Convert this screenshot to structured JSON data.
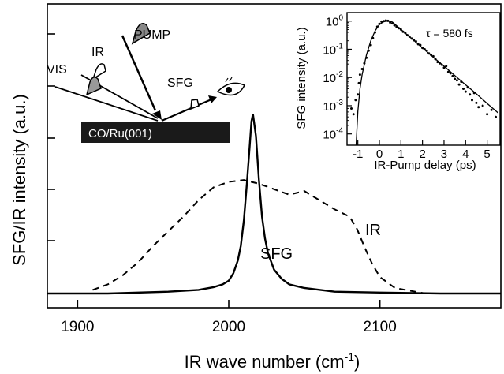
{
  "chart_data": [
    {
      "type": "line",
      "xlabel": "IR wave number (cm",
      "xlabel_sup": "-1",
      "xlabel_end": ")",
      "ylabel": "SFG/IR intensity (a.u.)",
      "xlim": [
        1880,
        2180
      ],
      "ylim": [
        0,
        1
      ],
      "x_ticks": [
        1900,
        2000,
        2100
      ],
      "x_tick_labels": [
        "1900",
        "2000",
        "2100"
      ],
      "grid": false,
      "series": [
        {
          "name": "SFG",
          "style": "solid",
          "x": [
            1880,
            1920,
            1960,
            1980,
            1990,
            1996,
            2000,
            2003,
            2006,
            2008,
            2010,
            2012,
            2014,
            2015,
            2016,
            2018,
            2020,
            2022,
            2024,
            2026,
            2030,
            2035,
            2040,
            2050,
            2070,
            2100,
            2140,
            2180
          ],
          "y": [
            0.0,
            0.0,
            0.01,
            0.02,
            0.035,
            0.05,
            0.07,
            0.11,
            0.18,
            0.26,
            0.4,
            0.6,
            0.82,
            0.94,
            0.98,
            0.86,
            0.62,
            0.42,
            0.3,
            0.22,
            0.13,
            0.08,
            0.05,
            0.03,
            0.01,
            0.005,
            0.0,
            0.0
          ]
        },
        {
          "name": "IR",
          "style": "dashed",
          "x": [
            1910,
            1920,
            1930,
            1940,
            1950,
            1960,
            1970,
            1980,
            1990,
            2000,
            2010,
            2020,
            2030,
            2040,
            2050,
            2060,
            2070,
            2080,
            2085,
            2090,
            2095,
            2100,
            2110,
            2130,
            2150
          ],
          "y": [
            0.02,
            0.05,
            0.1,
            0.17,
            0.26,
            0.34,
            0.42,
            0.51,
            0.58,
            0.61,
            0.62,
            0.6,
            0.57,
            0.54,
            0.56,
            0.51,
            0.46,
            0.42,
            0.35,
            0.25,
            0.16,
            0.09,
            0.03,
            0.0,
            0.0
          ]
        }
      ]
    },
    {
      "type": "scatter",
      "ylabel": "SFG intensity (a.u.)",
      "xlabel": "IR-Pump delay (ps)",
      "xlim": [
        -1.5,
        5.6
      ],
      "ylim_exp": [
        -4.4,
        0.3
      ],
      "log_y": true,
      "x_ticks": [
        -1,
        0,
        1,
        2,
        3,
        4,
        5
      ],
      "y_tick_labels": [
        {
          "base": "10",
          "exp": "0"
        },
        {
          "base": "10",
          "exp": "-1"
        },
        {
          "base": "10",
          "exp": "-2"
        },
        {
          "base": "10",
          "exp": "-3"
        },
        {
          "base": "10",
          "exp": "-4"
        }
      ],
      "annotation": "τ = 580 fs",
      "points_x": [
        -1.3,
        -1.2,
        -1.1,
        -1.0,
        -0.95,
        -0.9,
        -0.8,
        -0.7,
        -0.6,
        -0.5,
        -0.4,
        -0.3,
        -0.2,
        -0.1,
        0.0,
        0.1,
        0.2,
        0.3,
        0.4,
        0.5,
        0.6,
        0.7,
        0.8,
        0.9,
        1.0,
        1.1,
        1.2,
        1.3,
        1.4,
        1.5,
        1.6,
        1.7,
        1.8,
        1.9,
        2.0,
        2.1,
        2.2,
        2.3,
        2.4,
        2.5,
        2.6,
        2.7,
        2.8,
        2.9,
        3.0,
        3.1,
        3.2,
        3.3,
        3.4,
        3.5,
        3.6,
        3.7,
        3.8,
        3.9,
        4.0,
        4.1,
        4.2,
        4.3,
        4.4,
        4.5,
        4.6,
        4.8,
        5.0,
        5.2,
        5.4
      ],
      "points_logy": [
        -3.1,
        -3.3,
        -2.8,
        -2.6,
        -2.2,
        -1.9,
        -1.7,
        -1.5,
        -1.3,
        -1.05,
        -0.85,
        -0.6,
        -0.4,
        -0.2,
        -0.1,
        -0.02,
        0.0,
        0.02,
        0.01,
        -0.05,
        -0.08,
        -0.15,
        -0.2,
        -0.25,
        -0.3,
        -0.38,
        -0.42,
        -0.5,
        -0.55,
        -0.62,
        -0.68,
        -0.72,
        -0.82,
        -0.85,
        -0.95,
        -1.0,
        -1.05,
        -1.15,
        -1.2,
        -1.25,
        -1.35,
        -1.45,
        -1.5,
        -1.55,
        -1.65,
        -1.6,
        -1.8,
        -1.85,
        -1.95,
        -2.05,
        -2.1,
        -2.25,
        -2.15,
        -2.4,
        -2.5,
        -2.35,
        -2.6,
        -2.8,
        -2.55,
        -2.9,
        -3.05,
        -3.0,
        -3.3,
        -3.15,
        -3.4
      ],
      "fit_x": [
        -1.08,
        -1.0,
        -0.9,
        -0.8,
        -0.6,
        -0.4,
        -0.2,
        0.0,
        0.2,
        0.4,
        0.6,
        1.0,
        1.5,
        2.0,
        2.5,
        3.0,
        3.5,
        4.0,
        4.5,
        5.0,
        5.5
      ],
      "fit_logy": [
        -4.4,
        -3.2,
        -2.4,
        -1.9,
        -1.2,
        -0.7,
        -0.35,
        -0.12,
        -0.02,
        0.0,
        -0.03,
        -0.3,
        -0.62,
        -0.95,
        -1.28,
        -1.6,
        -1.93,
        -2.26,
        -2.58,
        -2.92,
        -3.25
      ]
    }
  ],
  "diagram": {
    "labels": [
      "PUMP",
      "IR",
      "VIS",
      "SFG"
    ],
    "surface": "CO/Ru(001)"
  },
  "labels": {
    "sfg": "SFG",
    "ir": "IR"
  }
}
